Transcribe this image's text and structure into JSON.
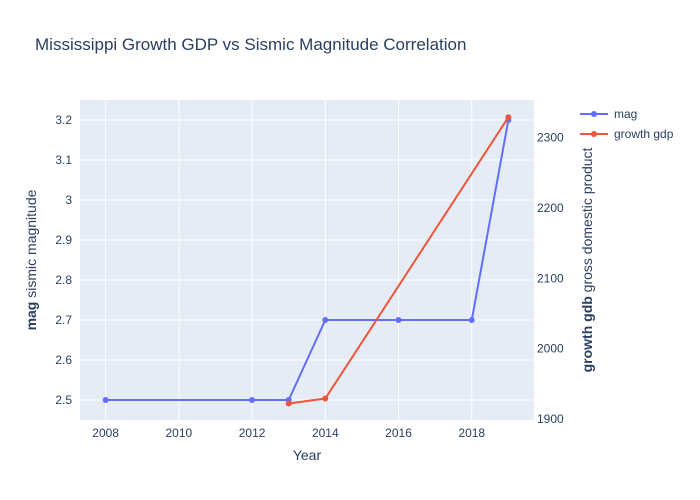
{
  "chart_data": {
    "type": "line",
    "title": "Mississippi Growth GDP vs Sismic Magnitude Correlation",
    "xlabel": "Year",
    "ylabel_bold": "mag",
    "ylabel_rest": "sismic magnitude",
    "y2label_bold": "growth gdb",
    "y2label_rest": "gross domestic product",
    "xlim": [
      2007.3,
      2019.7
    ],
    "ylim": [
      2.45,
      3.25
    ],
    "y2lim": [
      1898.5,
      2353.5
    ],
    "x_ticks": [
      "2008",
      "2010",
      "2012",
      "2014",
      "2016",
      "2018"
    ],
    "y_ticks": [
      "2.5",
      "2.6",
      "2.7",
      "2.8",
      "2.9",
      "3",
      "3.1",
      "3.2"
    ],
    "y2_ticks": [
      "1900",
      "2000",
      "2100",
      "2200",
      "2300"
    ],
    "grid": true,
    "legend": "top-right",
    "series": [
      {
        "name": "mag",
        "axis": "y",
        "color": "#636efa",
        "x": [
          2008,
          2012,
          2013,
          2014,
          2016,
          2018,
          2019
        ],
        "y": [
          2.5,
          2.5,
          2.5,
          2.7,
          2.7,
          2.7,
          3.2
        ]
      },
      {
        "name": "growth gdp",
        "axis": "y2",
        "color": "#ef553b",
        "x": [
          2013,
          2014,
          2019
        ],
        "y": [
          1922,
          1929,
          2329
        ]
      }
    ]
  }
}
